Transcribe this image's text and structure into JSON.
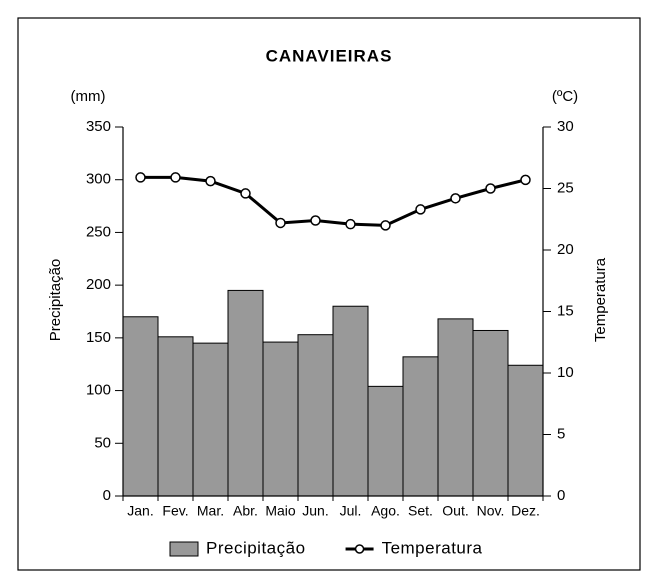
{
  "chart_data": {
    "type": "bar",
    "title": "CANAVIEIRAS",
    "y_unit": "(mm)",
    "y2_unit": "(ºC)",
    "y_label": "Precipitação",
    "y2_label": "Temperatura",
    "categories": [
      "Jan.",
      "Fev.",
      "Mar.",
      "Abr.",
      "Maio",
      "Jun.",
      "Jul.",
      "Ago.",
      "Set.",
      "Out.",
      "Nov.",
      "Dez."
    ],
    "series": [
      {
        "name": "Precipitação",
        "type": "bar",
        "color": "#999999",
        "values": [
          170,
          151,
          145,
          195,
          146,
          153,
          180,
          104,
          132,
          168,
          157,
          124
        ]
      },
      {
        "name": "Temperatura",
        "type": "line",
        "axis": "y2",
        "color": "#000000",
        "values": [
          25.9,
          25.9,
          25.6,
          24.6,
          22.2,
          22.4,
          22.1,
          22.0,
          23.3,
          24.2,
          25.0,
          25.7
        ]
      }
    ],
    "ylim": [
      0,
      350
    ],
    "yticks": [
      0,
      50,
      100,
      150,
      200,
      250,
      300,
      350
    ],
    "y2lim": [
      0,
      30
    ],
    "y2ticks": [
      0,
      5,
      10,
      15,
      20,
      25,
      30
    ],
    "legend": "bottom"
  }
}
